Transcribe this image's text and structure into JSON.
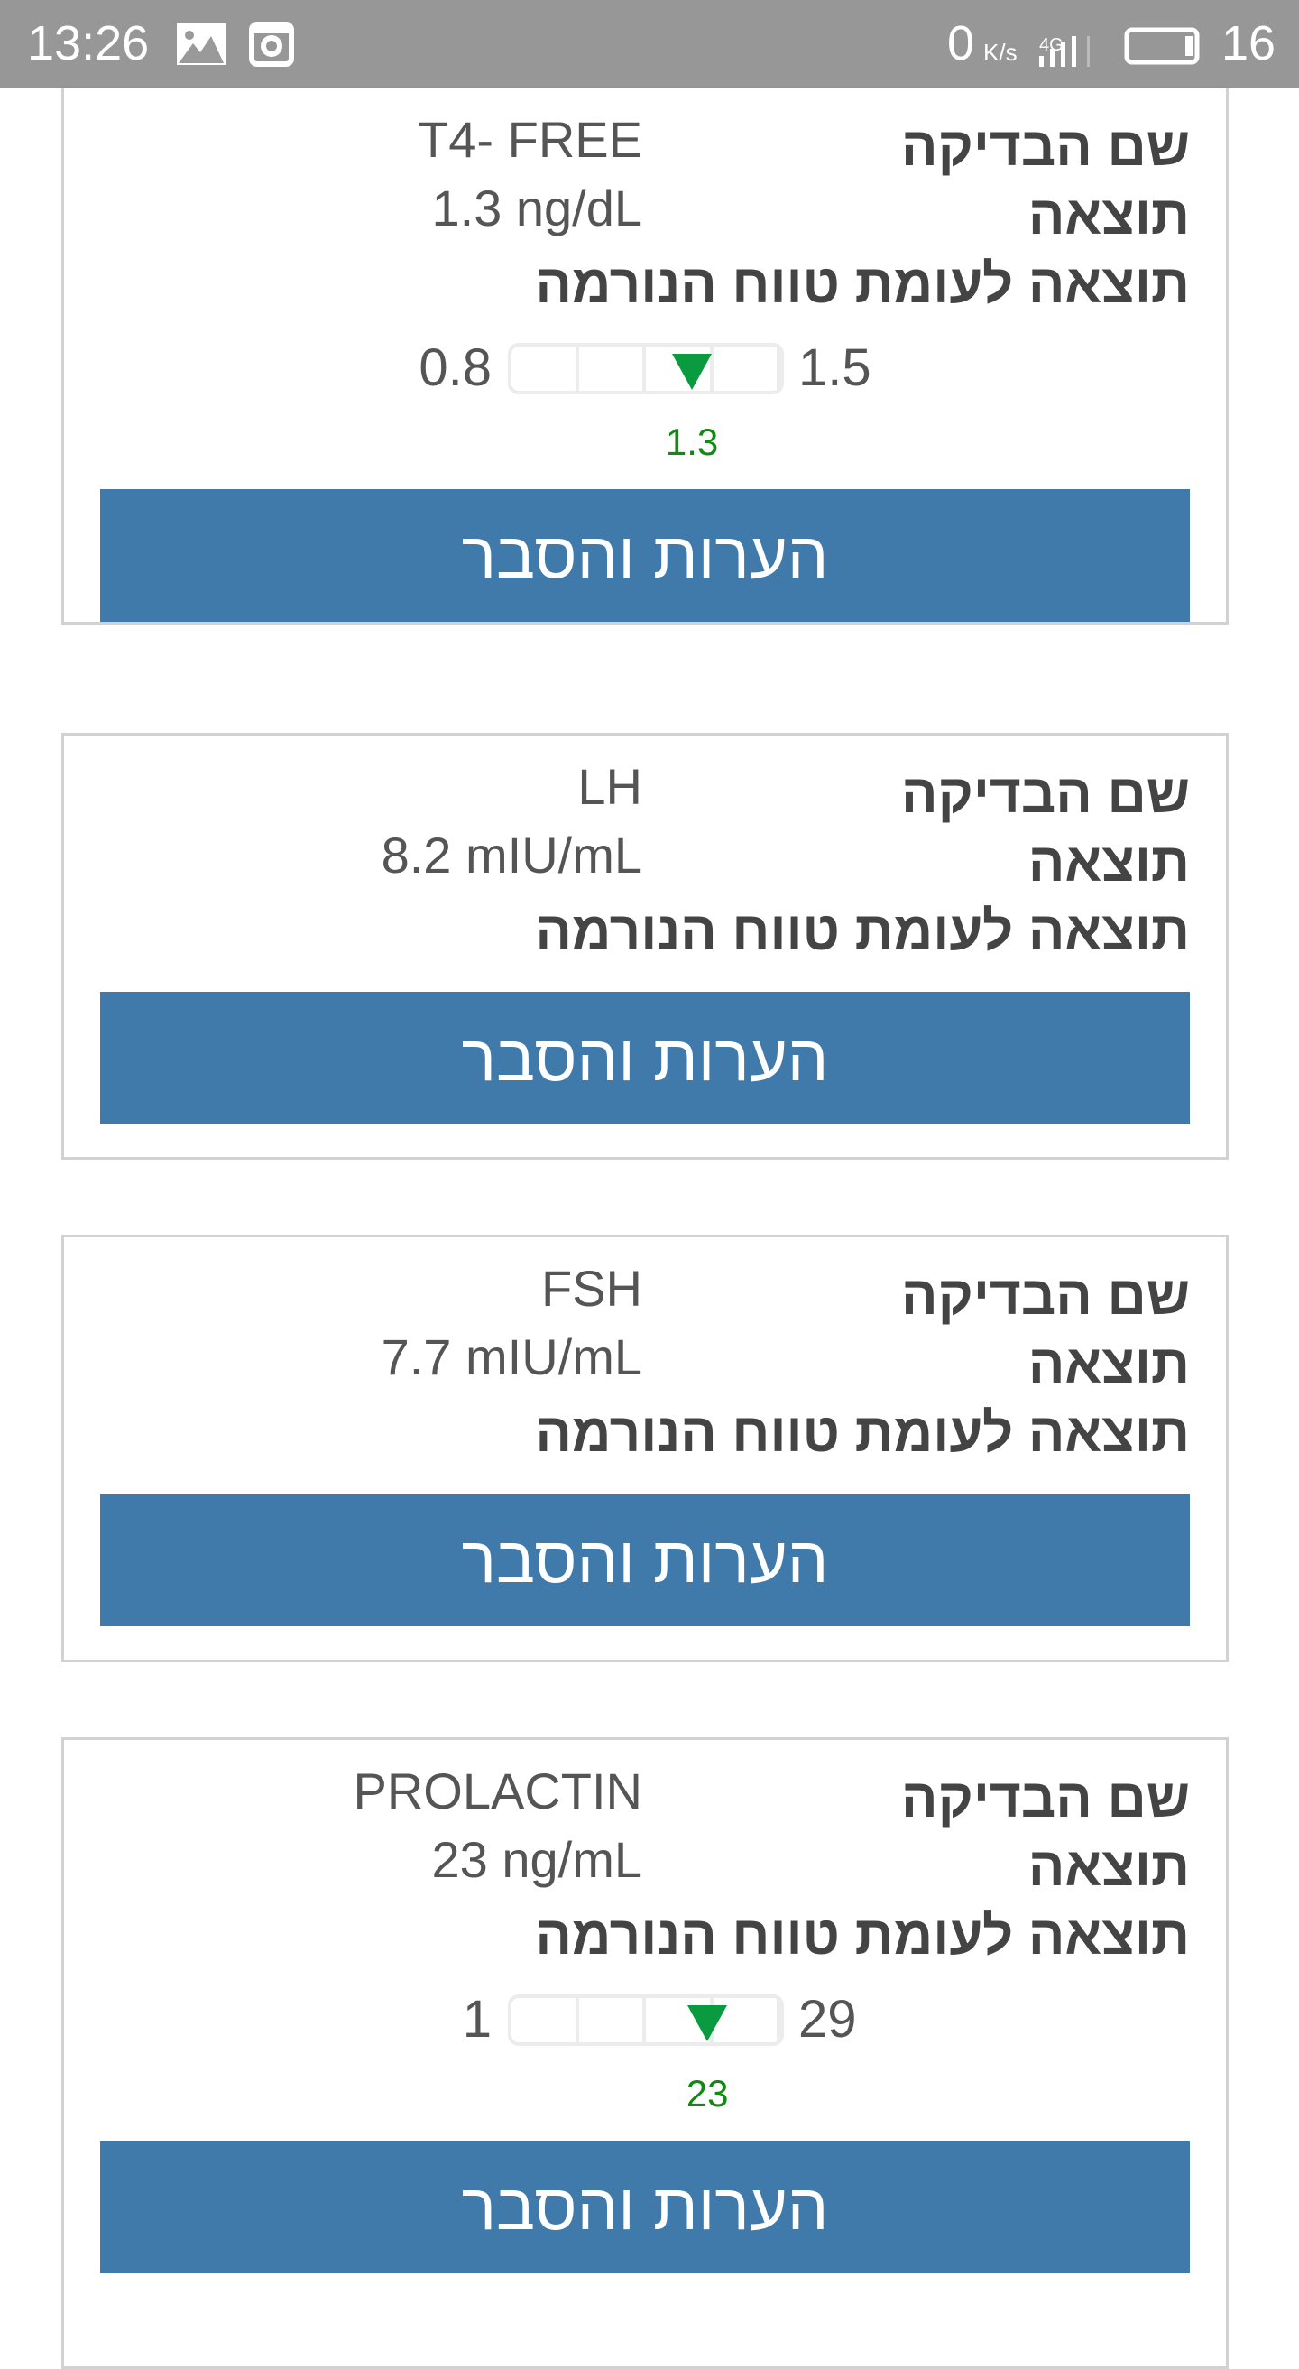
{
  "status_bar": {
    "time": "13:26",
    "net_speed": "0",
    "net_unit": "K/s",
    "network": "4G",
    "battery": "16",
    "icons": [
      "image-icon",
      "instagram-icon",
      "signal-icon",
      "battery-icon"
    ]
  },
  "labels": {
    "test_name": "שם הבדיקה",
    "result": "תוצאה",
    "vs_range": "תוצאה לעומת טווח הנורמה",
    "button": "הערות והסבר"
  },
  "colors": {
    "button": "#3f7aab",
    "marker": "#0a9a3f",
    "marker_value": "#128a12"
  },
  "cards": [
    {
      "name": "T4- FREE",
      "result": "1.3 ng/dL",
      "range": {
        "min": "0.8",
        "max": "1.5",
        "value": "1.3"
      }
    },
    {
      "name": "LH",
      "result": "8.2 mIU/mL"
    },
    {
      "name": "FSH",
      "result": "7.7 mIU/mL"
    },
    {
      "name": "PROLACTIN",
      "result": "23 ng/mL",
      "range": {
        "min": "1",
        "max": "29",
        "value": "23"
      }
    }
  ]
}
